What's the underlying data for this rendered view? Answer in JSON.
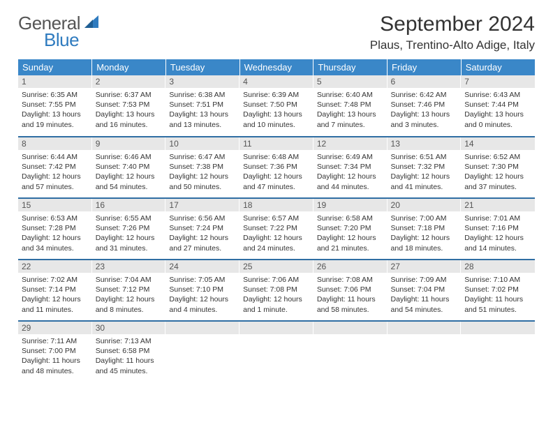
{
  "logo": {
    "text1": "General",
    "text2": "Blue",
    "sail_color": "#2f7bbf"
  },
  "header": {
    "month_title": "September 2024",
    "location": "Plaus, Trentino-Alto Adige, Italy"
  },
  "calendar": {
    "type": "table",
    "header_bg": "#3a87c8",
    "header_fg": "#ffffff",
    "rule_color": "#2f6ea3",
    "daynum_bg": "#e7e7e7",
    "background_color": "#ffffff",
    "columns": [
      "Sunday",
      "Monday",
      "Tuesday",
      "Wednesday",
      "Thursday",
      "Friday",
      "Saturday"
    ],
    "weeks": [
      [
        {
          "n": "1",
          "sunrise": "6:35 AM",
          "sunset": "7:55 PM",
          "day_h": "13",
          "day_m": "19"
        },
        {
          "n": "2",
          "sunrise": "6:37 AM",
          "sunset": "7:53 PM",
          "day_h": "13",
          "day_m": "16"
        },
        {
          "n": "3",
          "sunrise": "6:38 AM",
          "sunset": "7:51 PM",
          "day_h": "13",
          "day_m": "13"
        },
        {
          "n": "4",
          "sunrise": "6:39 AM",
          "sunset": "7:50 PM",
          "day_h": "13",
          "day_m": "10"
        },
        {
          "n": "5",
          "sunrise": "6:40 AM",
          "sunset": "7:48 PM",
          "day_h": "13",
          "day_m": "7"
        },
        {
          "n": "6",
          "sunrise": "6:42 AM",
          "sunset": "7:46 PM",
          "day_h": "13",
          "day_m": "3"
        },
        {
          "n": "7",
          "sunrise": "6:43 AM",
          "sunset": "7:44 PM",
          "day_h": "13",
          "day_m": "0"
        }
      ],
      [
        {
          "n": "8",
          "sunrise": "6:44 AM",
          "sunset": "7:42 PM",
          "day_h": "12",
          "day_m": "57"
        },
        {
          "n": "9",
          "sunrise": "6:46 AM",
          "sunset": "7:40 PM",
          "day_h": "12",
          "day_m": "54"
        },
        {
          "n": "10",
          "sunrise": "6:47 AM",
          "sunset": "7:38 PM",
          "day_h": "12",
          "day_m": "50"
        },
        {
          "n": "11",
          "sunrise": "6:48 AM",
          "sunset": "7:36 PM",
          "day_h": "12",
          "day_m": "47"
        },
        {
          "n": "12",
          "sunrise": "6:49 AM",
          "sunset": "7:34 PM",
          "day_h": "12",
          "day_m": "44"
        },
        {
          "n": "13",
          "sunrise": "6:51 AM",
          "sunset": "7:32 PM",
          "day_h": "12",
          "day_m": "41"
        },
        {
          "n": "14",
          "sunrise": "6:52 AM",
          "sunset": "7:30 PM",
          "day_h": "12",
          "day_m": "37"
        }
      ],
      [
        {
          "n": "15",
          "sunrise": "6:53 AM",
          "sunset": "7:28 PM",
          "day_h": "12",
          "day_m": "34"
        },
        {
          "n": "16",
          "sunrise": "6:55 AM",
          "sunset": "7:26 PM",
          "day_h": "12",
          "day_m": "31"
        },
        {
          "n": "17",
          "sunrise": "6:56 AM",
          "sunset": "7:24 PM",
          "day_h": "12",
          "day_m": "27"
        },
        {
          "n": "18",
          "sunrise": "6:57 AM",
          "sunset": "7:22 PM",
          "day_h": "12",
          "day_m": "24"
        },
        {
          "n": "19",
          "sunrise": "6:58 AM",
          "sunset": "7:20 PM",
          "day_h": "12",
          "day_m": "21"
        },
        {
          "n": "20",
          "sunrise": "7:00 AM",
          "sunset": "7:18 PM",
          "day_h": "12",
          "day_m": "18"
        },
        {
          "n": "21",
          "sunrise": "7:01 AM",
          "sunset": "7:16 PM",
          "day_h": "12",
          "day_m": "14"
        }
      ],
      [
        {
          "n": "22",
          "sunrise": "7:02 AM",
          "sunset": "7:14 PM",
          "day_h": "12",
          "day_m": "11"
        },
        {
          "n": "23",
          "sunrise": "7:04 AM",
          "sunset": "7:12 PM",
          "day_h": "12",
          "day_m": "8"
        },
        {
          "n": "24",
          "sunrise": "7:05 AM",
          "sunset": "7:10 PM",
          "day_h": "12",
          "day_m": "4"
        },
        {
          "n": "25",
          "sunrise": "7:06 AM",
          "sunset": "7:08 PM",
          "day_h": "12",
          "day_m": "1"
        },
        {
          "n": "26",
          "sunrise": "7:08 AM",
          "sunset": "7:06 PM",
          "day_h": "11",
          "day_m": "58"
        },
        {
          "n": "27",
          "sunrise": "7:09 AM",
          "sunset": "7:04 PM",
          "day_h": "11",
          "day_m": "54"
        },
        {
          "n": "28",
          "sunrise": "7:10 AM",
          "sunset": "7:02 PM",
          "day_h": "11",
          "day_m": "51"
        }
      ],
      [
        {
          "n": "29",
          "sunrise": "7:11 AM",
          "sunset": "7:00 PM",
          "day_h": "11",
          "day_m": "48"
        },
        {
          "n": "30",
          "sunrise": "7:13 AM",
          "sunset": "6:58 PM",
          "day_h": "11",
          "day_m": "45"
        },
        null,
        null,
        null,
        null,
        null
      ]
    ],
    "labels": {
      "sunrise": "Sunrise: ",
      "sunset": "Sunset: ",
      "daylight_pre": "Daylight: ",
      "hours_word": " hours",
      "and_word": "and ",
      "minutes_word_singular": " minute.",
      "minutes_word_plural": " minutes."
    }
  }
}
